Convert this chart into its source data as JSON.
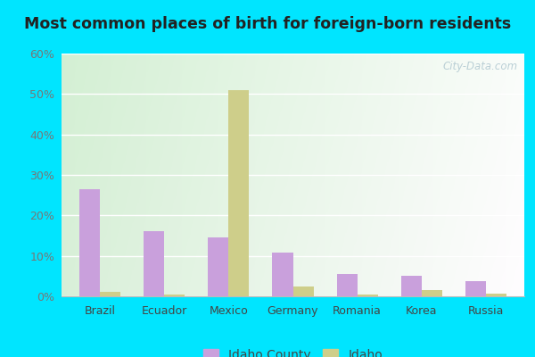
{
  "title": "Most common places of birth for foreign-born residents",
  "categories": [
    "Brazil",
    "Ecuador",
    "Mexico",
    "Germany",
    "Romania",
    "Korea",
    "Russia"
  ],
  "idaho_county": [
    26.5,
    16.0,
    14.5,
    10.8,
    5.5,
    5.0,
    3.8
  ],
  "idaho": [
    1.0,
    0.5,
    51.0,
    2.5,
    0.4,
    1.5,
    0.6
  ],
  "idaho_county_color": "#c9a0dc",
  "idaho_color": "#cece8a",
  "ylim": [
    0,
    60
  ],
  "yticks": [
    0,
    10,
    20,
    30,
    40,
    50,
    60
  ],
  "ytick_labels": [
    "0%",
    "10%",
    "20%",
    "30%",
    "40%",
    "50%",
    "60%"
  ],
  "outer_background": "#00e5ff",
  "watermark": "City-Data.com",
  "bar_width": 0.32,
  "legend_labels": [
    "Idaho County",
    "Idaho"
  ],
  "title_fontsize": 12.5,
  "tick_fontsize": 9,
  "legend_fontsize": 10
}
